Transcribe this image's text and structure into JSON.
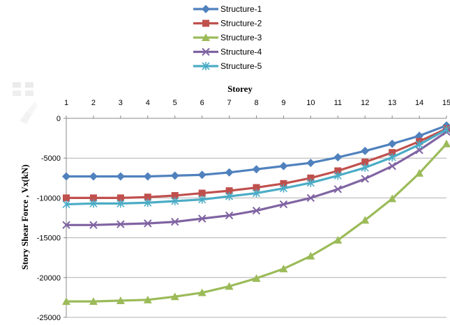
{
  "chart_data": {
    "type": "line",
    "title": "",
    "xlabel": "Storey",
    "ylabel": "Story Shear Force , Vx(kN)",
    "x": [
      1,
      2,
      3,
      4,
      5,
      6,
      7,
      8,
      9,
      10,
      11,
      12,
      13,
      14,
      15
    ],
    "ylim": [
      -25000,
      0
    ],
    "yticks": [
      0,
      -5000,
      -10000,
      -15000,
      -20000,
      -25000
    ],
    "x_axis_position": "top",
    "grid": "horizontal",
    "legend_position": "top",
    "series": [
      {
        "name": "Structure-1",
        "color": "#4F81BD",
        "marker": "diamond",
        "values": [
          -7300,
          -7300,
          -7300,
          -7300,
          -7200,
          -7100,
          -6800,
          -6400,
          -6000,
          -5600,
          -4900,
          -4100,
          -3200,
          -2200,
          -900
        ]
      },
      {
        "name": "Structure-2",
        "color": "#C0504D",
        "marker": "square",
        "values": [
          -10000,
          -10000,
          -10000,
          -9900,
          -9700,
          -9400,
          -9100,
          -8700,
          -8200,
          -7500,
          -6600,
          -5500,
          -4300,
          -2900,
          -1300
        ]
      },
      {
        "name": "Structure-3",
        "color": "#9BBB59",
        "marker": "triangle",
        "values": [
          -23000,
          -23000,
          -22900,
          -22800,
          -22400,
          -21900,
          -21100,
          -20100,
          -18900,
          -17300,
          -15300,
          -12800,
          -10100,
          -6900,
          -3200
        ]
      },
      {
        "name": "Structure-4",
        "color": "#8064A2",
        "marker": "x",
        "values": [
          -13400,
          -13400,
          -13300,
          -13200,
          -13000,
          -12600,
          -12200,
          -11600,
          -10800,
          -10000,
          -8900,
          -7600,
          -6000,
          -4000,
          -1700
        ]
      },
      {
        "name": "Structure-5",
        "color": "#4BACC6",
        "marker": "star",
        "values": [
          -10800,
          -10700,
          -10700,
          -10600,
          -10400,
          -10200,
          -9800,
          -9400,
          -8800,
          -8100,
          -7200,
          -6200,
          -4900,
          -3300,
          -1400
        ]
      }
    ]
  }
}
